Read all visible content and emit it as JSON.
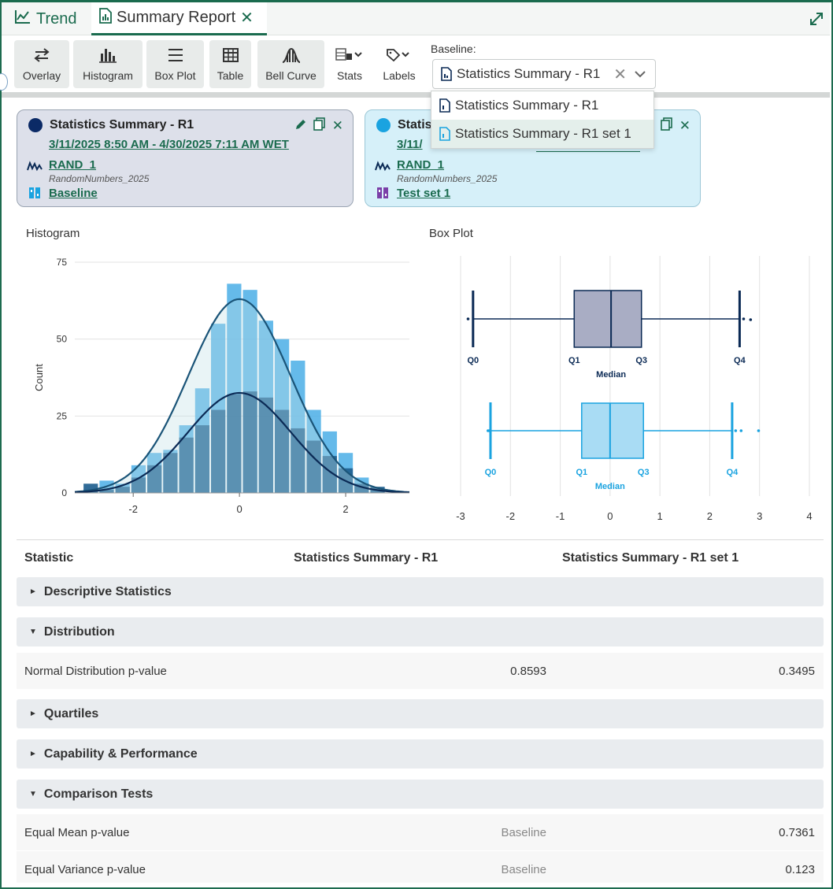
{
  "tabs": [
    {
      "label": "Trend",
      "icon": "trend-icon"
    },
    {
      "label": "Summary Report",
      "icon": "report-icon",
      "active": true
    }
  ],
  "toolbar": {
    "buttons": [
      {
        "label": "Overlay",
        "icon": "swap-arrows-icon"
      },
      {
        "label": "Histogram",
        "icon": "histogram-icon"
      },
      {
        "label": "Box Plot",
        "icon": "boxplot-icon"
      },
      {
        "label": "Table",
        "icon": "table-icon"
      },
      {
        "label": "Bell Curve",
        "icon": "bell-curve-icon"
      },
      {
        "label": "Stats",
        "icon": "stats-icon"
      },
      {
        "label": "Labels",
        "icon": "tag-icon"
      }
    ],
    "baseline_label": "Baseline:",
    "baseline_value": "Statistics Summary - R1"
  },
  "dropdown": {
    "options": [
      "Statistics Summary - R1",
      "Statistics Summary - R1 set 1"
    ],
    "highlighted": 1
  },
  "cards": [
    {
      "title": "Statistics Summary - R1",
      "date_range": "3/11/2025 8:50 AM - 4/30/2025 7:11 AM WET",
      "signal": "RAND_1",
      "signal_source": "RandomNumbers_2025",
      "condition": "Baseline",
      "color": "#0b2a66"
    },
    {
      "title": "Statis",
      "date_range": "3/11/",
      "signal": "RAND_1",
      "signal_source": "RandomNumbers_2025",
      "condition": "Test set 1",
      "color": "#1aa3e0"
    }
  ],
  "histogram": {
    "title": "Histogram",
    "ylabel": "Count"
  },
  "boxplot": {
    "title": "Box Plot",
    "quartile_labels": [
      "Q0",
      "Q1",
      "Q3",
      "Q4"
    ],
    "median_label": "Median"
  },
  "chart_data": [
    {
      "type": "bar",
      "title": "Histogram",
      "ylabel": "Count",
      "xlim": [
        -3.1,
        3.2
      ],
      "ylim": [
        0,
        75
      ],
      "yticks": [
        0,
        25,
        50,
        75
      ],
      "xticks": [
        -2,
        0,
        2
      ],
      "bin_width": 0.3,
      "bin_centers": [
        -2.8,
        -2.5,
        -2.2,
        -1.9,
        -1.6,
        -1.3,
        -1.0,
        -0.7,
        -0.4,
        -0.1,
        0.2,
        0.5,
        0.8,
        1.1,
        1.4,
        1.7,
        2.0,
        2.3,
        2.6,
        2.9
      ],
      "series": [
        {
          "name": "Statistics Summary - R1 set 1",
          "color": "#4aaee6",
          "values": [
            1,
            4,
            3,
            9,
            13,
            14,
            22,
            34,
            55,
            68,
            66,
            56,
            50,
            43,
            27,
            20,
            13,
            5,
            1,
            0
          ]
        },
        {
          "name": "Statistics Summary - R1",
          "color": "#1f5f8f",
          "values": [
            3,
            1,
            2,
            5,
            9,
            13,
            18,
            22,
            27,
            32,
            33,
            31,
            27,
            21,
            17,
            12,
            8,
            3,
            2,
            0
          ]
        }
      ],
      "curves": [
        {
          "color": "#1a5478",
          "mean": 0,
          "sd": 0.96,
          "peak": 63
        },
        {
          "color": "#0b2a55",
          "mean": 0,
          "sd": 0.97,
          "peak": 32.5
        }
      ]
    },
    {
      "type": "box",
      "title": "Box Plot",
      "xlim": [
        -3,
        4
      ],
      "xticks": [
        -3,
        -2,
        -1,
        0,
        1,
        2,
        3,
        4
      ],
      "series": [
        {
          "name": "Statistics Summary - R1",
          "color": "#0b2a55",
          "fill": "#a9adc4",
          "q0": -2.75,
          "q1": -0.72,
          "median": 0.02,
          "q3": 0.63,
          "q4": 2.6,
          "outliers": [
            -2.85,
            2.68,
            2.82
          ]
        },
        {
          "name": "Statistics Summary - R1 set 1",
          "color": "#1aa3e0",
          "fill": "#a9dcf4",
          "q0": -2.4,
          "q1": -0.57,
          "median": 0.0,
          "q3": 0.67,
          "q4": 2.45,
          "outliers": [
            -2.45,
            -2.42,
            2.52,
            2.63,
            2.98
          ]
        }
      ]
    }
  ],
  "table": {
    "headers": [
      "Statistic",
      "Statistics Summary - R1",
      "Statistics Summary - R1 set 1"
    ],
    "sections": [
      {
        "label": "Descriptive Statistics",
        "expanded": false,
        "rows": []
      },
      {
        "label": "Distribution",
        "expanded": true,
        "rows": [
          {
            "label": "Normal Distribution p-value",
            "v1": "0.8593",
            "v2": "0.3495"
          }
        ]
      },
      {
        "label": "Quartiles",
        "expanded": false,
        "rows": []
      },
      {
        "label": "Capability & Performance",
        "expanded": false,
        "rows": []
      },
      {
        "label": "Comparison Tests",
        "expanded": true,
        "rows": [
          {
            "label": "Equal Mean p-value",
            "v1": "Baseline",
            "v2": "0.7361"
          },
          {
            "label": "Equal Variance p-value",
            "v1": "Baseline",
            "v2": "0.123"
          }
        ]
      }
    ]
  }
}
